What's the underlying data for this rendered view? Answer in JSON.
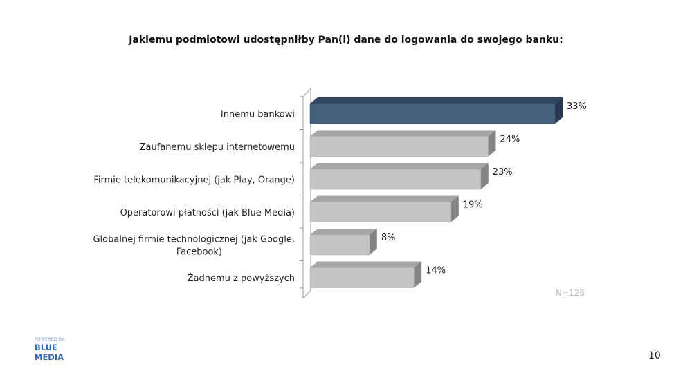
{
  "chart_data": {
    "type": "bar",
    "orientation": "horizontal",
    "title": "Jakiemu podmiotowi udostępniłby Pan(i) dane do logowania do swojego banku:",
    "categories": [
      "Innemu bankowi",
      "Zaufanemu sklepu internetowemu",
      "Firmie telekomunikacyjnej (jak Play, Orange)",
      "Operatorowi płatności (jak Blue Media)",
      "Globalnej firmie technologicznej (jak Google, Facebook)",
      "Żadnemu z powyższych"
    ],
    "category_lines": [
      [
        "Innemu bankowi"
      ],
      [
        "Zaufanemu sklepu internetowemu"
      ],
      [
        "Firmie telekomunikacyjnej (jak Play, Orange)"
      ],
      [
        "Operatorowi płatności (jak Blue Media)"
      ],
      [
        "Globalnej firmie technologicznej (jak Google,",
        "Facebook)"
      ],
      [
        "Żadnemu z powyższych"
      ]
    ],
    "values": [
      33,
      24,
      23,
      19,
      8,
      14
    ],
    "value_labels": [
      "33%",
      "24%",
      "23%",
      "19%",
      "8%",
      "14%"
    ],
    "highlight_index": 0,
    "colors": {
      "highlight_front": "#465f7b",
      "highlight_top": "#2f4660",
      "highlight_side": "#26384f",
      "bar_front": "#c4c4c4",
      "bar_top": "#a6a6a6",
      "bar_side": "#858585",
      "axis": "#9a9a9a"
    },
    "xlim": [
      0,
      33
    ],
    "grid": false,
    "legend": "none",
    "style": "3d",
    "note": "N=128"
  },
  "footer": {
    "logo_small": "POWERED BY",
    "logo_line1": "BLUE",
    "logo_line2": "MEDIA",
    "page_number": "10"
  }
}
